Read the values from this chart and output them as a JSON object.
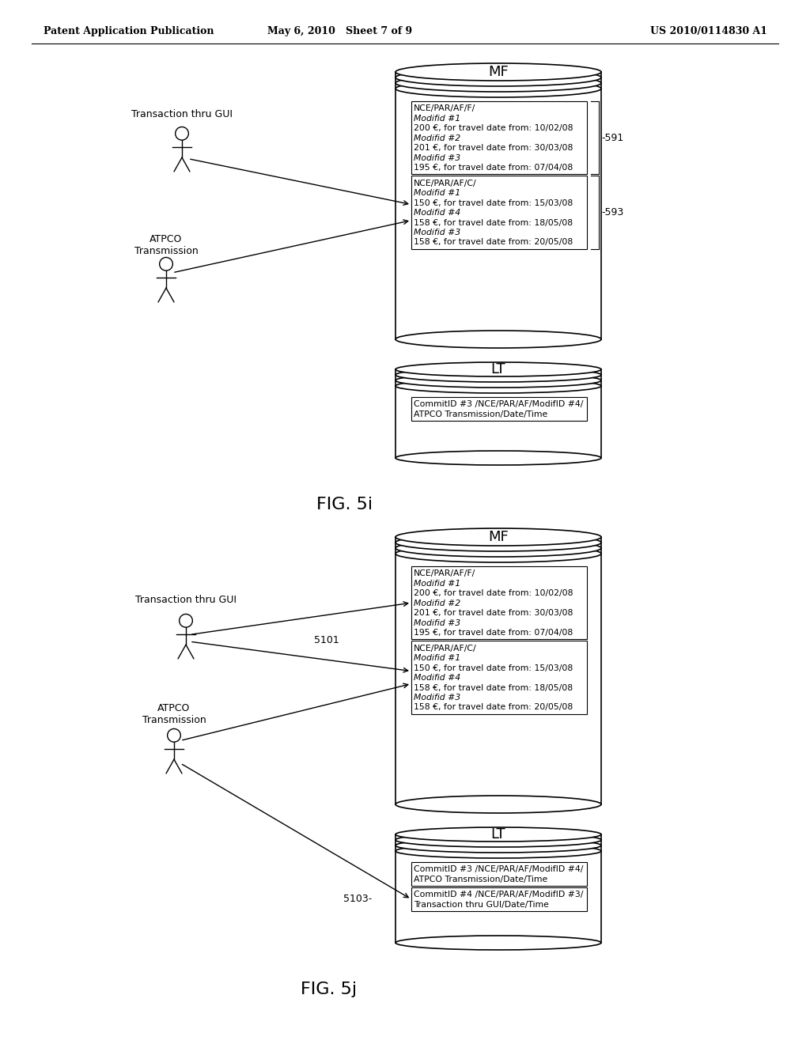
{
  "header_left": "Patent Application Publication",
  "header_mid": "May 6, 2010   Sheet 7 of 9",
  "header_right": "US 2010/0114830 A1",
  "fig_label_i": "FIG. 5i",
  "fig_label_j": "FIG. 5j",
  "bg_color": "#ffffff",
  "fig_i": {
    "mf_label": "MF",
    "lt_label": "LT",
    "box1_title": "NCE/PAR/AF/F/",
    "box1_lines": [
      [
        "italic",
        "Modifid #1"
      ],
      [
        "normal",
        "200 €, for travel date from: 10/02/08"
      ],
      [
        "italic",
        "Modifid #2"
      ],
      [
        "normal",
        "201 €, for travel date from: 30/03/08"
      ],
      [
        "italic",
        "Modifid #3"
      ],
      [
        "normal",
        "195 €, for travel date from: 07/04/08"
      ]
    ],
    "box2_title": "NCE/PAR/AF/C/",
    "box2_lines": [
      [
        "italic",
        "Modifid #1"
      ],
      [
        "normal",
        "150 €, for travel date from: 15/03/08"
      ],
      [
        "italic",
        "Modifid #4"
      ],
      [
        "normal",
        "158 €, for travel date from: 18/05/08"
      ],
      [
        "italic",
        "Modifid #3"
      ],
      [
        "normal",
        "158 €, for travel date from: 20/05/08"
      ]
    ],
    "lt_box_lines": [
      "CommitID #3 /NCE/PAR/AF/ModifID #4/",
      "ATPCO Transmission/Date/Time"
    ],
    "label_591": "-591",
    "label_593": "-593",
    "label_gui": "Transaction thru GUI",
    "label_atpco": "ATPCO\nTransmission"
  },
  "fig_j": {
    "mf_label": "MF",
    "lt_label": "LT",
    "box1_title": "NCE/PAR/AF/F/",
    "box1_lines": [
      [
        "italic",
        "Modifid #1"
      ],
      [
        "normal",
        "200 €, for travel date from: 10/02/08"
      ],
      [
        "italic",
        "Modifid #2"
      ],
      [
        "normal",
        "201 €, for travel date from: 30/03/08"
      ],
      [
        "italic",
        "Modifid #3"
      ],
      [
        "normal",
        "195 €, for travel date from: 07/04/08"
      ]
    ],
    "box2_title": "NCE/PAR/AF/C/",
    "box2_lines": [
      [
        "italic",
        "Modifid #1"
      ],
      [
        "normal",
        "150 €, for travel date from: 15/03/08"
      ],
      [
        "italic",
        "Modifid #4"
      ],
      [
        "normal",
        "158 €, for travel date from: 18/05/08"
      ],
      [
        "italic",
        "Modifid #3"
      ],
      [
        "normal",
        "158 €, for travel date from: 20/05/08"
      ]
    ],
    "lt_box1_lines": [
      "CommitID #3 /NCE/PAR/AF/ModifID #4/",
      "ATPCO Transmission/Date/Time"
    ],
    "lt_box2_lines": [
      "CommitID #4 /NCE/PAR/AF/ModifID #3/",
      "Transaction thru GUI/Date/Time"
    ],
    "label_5101": "5101",
    "label_5103": "5103-",
    "label_gui": "Transaction thru GUI",
    "label_atpco": "ATPCO\nTransmission"
  }
}
